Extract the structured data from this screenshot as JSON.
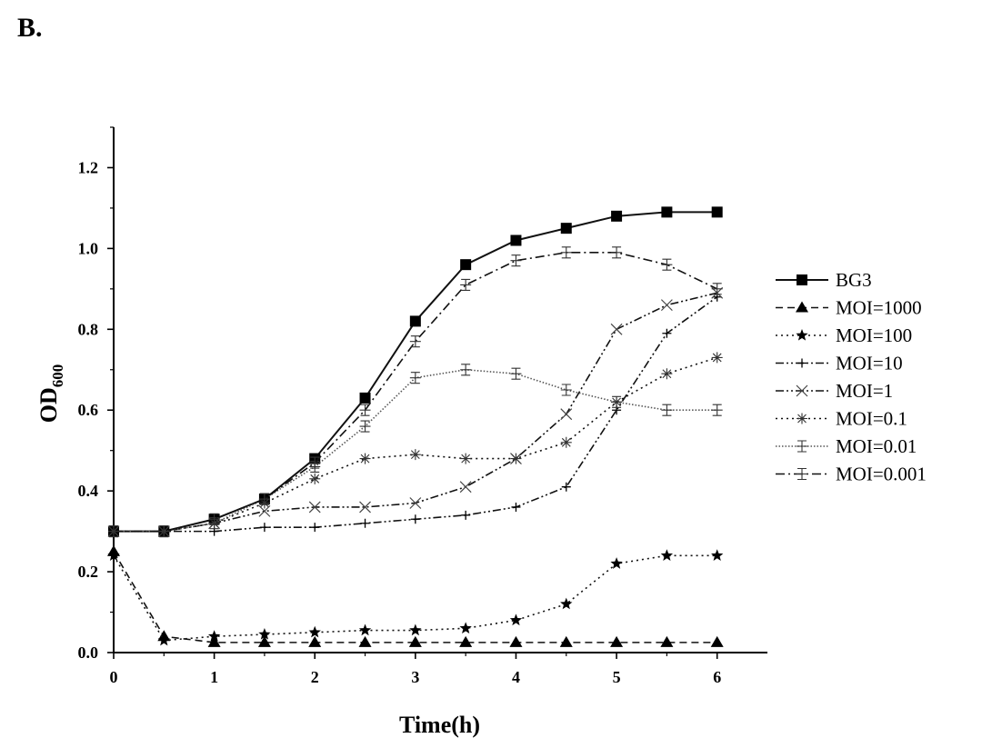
{
  "panel_label": "B.",
  "chart_data": {
    "type": "line",
    "title": "",
    "xlabel": "Time(h)",
    "ylabel": "OD",
    "ylabel_sub": "600",
    "x": [
      0,
      0.5,
      1,
      1.5,
      2,
      2.5,
      3,
      3.5,
      4,
      4.5,
      5,
      5.5,
      6
    ],
    "xlim": [
      0,
      6.5
    ],
    "ylim": [
      0,
      1.3
    ],
    "xticks": [
      0,
      1,
      2,
      3,
      4,
      5,
      6
    ],
    "xtick_labels": [
      "0",
      "1",
      "2",
      "3",
      "4",
      "5",
      "6"
    ],
    "yticks": [
      0,
      0.2,
      0.4,
      0.6,
      0.8,
      1.0,
      1.2
    ],
    "ytick_labels": [
      "0.0",
      "0.2",
      "0.4",
      "0.6",
      "0.8",
      "1.0",
      "1.2"
    ],
    "grid": false,
    "legend_position": "right",
    "series": [
      {
        "name": "BG3",
        "marker": "filled-square",
        "dash": "solid",
        "values": [
          0.3,
          0.3,
          0.33,
          0.38,
          0.48,
          0.63,
          0.82,
          0.96,
          1.02,
          1.05,
          1.08,
          1.09,
          1.09
        ]
      },
      {
        "name": "MOI=1000",
        "marker": "filled-triangle",
        "dash": "dash",
        "values": [
          0.25,
          0.04,
          0.025,
          0.025,
          0.025,
          0.025,
          0.025,
          0.025,
          0.025,
          0.025,
          0.025,
          0.025,
          0.025
        ]
      },
      {
        "name": "MOI=100",
        "marker": "star",
        "dash": "dot",
        "values": [
          0.24,
          0.03,
          0.04,
          0.045,
          0.05,
          0.055,
          0.055,
          0.06,
          0.08,
          0.12,
          0.22,
          0.24,
          0.24
        ]
      },
      {
        "name": "MOI=10",
        "marker": "plus",
        "dash": "dash-dot-dot",
        "values": [
          0.3,
          0.3,
          0.3,
          0.31,
          0.31,
          0.32,
          0.33,
          0.34,
          0.36,
          0.41,
          0.6,
          0.79,
          0.88
        ]
      },
      {
        "name": "MOI=1",
        "marker": "x",
        "dash": "dash-dot-dot",
        "values": [
          0.3,
          0.3,
          0.32,
          0.35,
          0.36,
          0.36,
          0.37,
          0.41,
          0.48,
          0.59,
          0.8,
          0.86,
          0.89
        ]
      },
      {
        "name": "MOI=0.1",
        "marker": "asterisk",
        "dash": "dot",
        "values": [
          0.3,
          0.3,
          0.32,
          0.37,
          0.43,
          0.48,
          0.49,
          0.48,
          0.48,
          0.52,
          0.62,
          0.69,
          0.73
        ]
      },
      {
        "name": "MOI=0.01",
        "marker": "errorbar",
        "dash": "dense-dot",
        "values": [
          0.3,
          0.3,
          0.32,
          0.38,
          0.46,
          0.56,
          0.68,
          0.7,
          0.69,
          0.65,
          0.62,
          0.6,
          0.6
        ]
      },
      {
        "name": "MOI=0.001",
        "marker": "errorbar",
        "dash": "dash-dot",
        "values": [
          0.3,
          0.3,
          0.33,
          0.38,
          0.47,
          0.6,
          0.77,
          0.91,
          0.97,
          0.99,
          0.99,
          0.96,
          0.9
        ]
      }
    ]
  }
}
